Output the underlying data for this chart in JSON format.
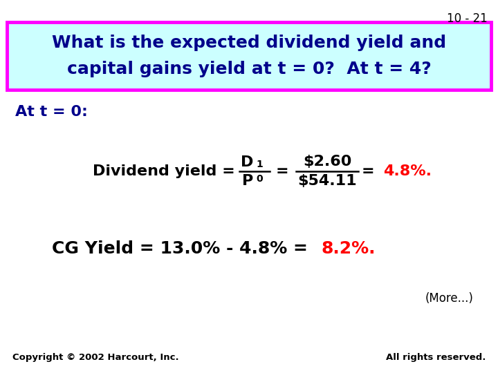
{
  "slide_number": "10 - 21",
  "title_line1": "What is the expected dividend yield and",
  "title_line2": "capital gains yield at t = 0?  At t = 4?",
  "title_bg_color": "#ccffff",
  "title_border_color": "#ff00ff",
  "title_text_color": "#00008B",
  "bg_color": "#ffffff",
  "at_t0_label": "At t = 0:",
  "div_yield_prefix": "Dividend yield =",
  "div_frac2_num": "$2.60",
  "div_frac2_den": "$54.11",
  "cg_line_black": "CG Yield = 13.0% - 4.8% = ",
  "cg_line_red": "8.2%.",
  "more_text": "(More...)",
  "copyright_left": "Copyright © 2002 Harcourt, Inc.",
  "copyright_right": "All rights reserved.",
  "dark_blue": "#00008B",
  "red": "#FF0000",
  "black": "#000000"
}
